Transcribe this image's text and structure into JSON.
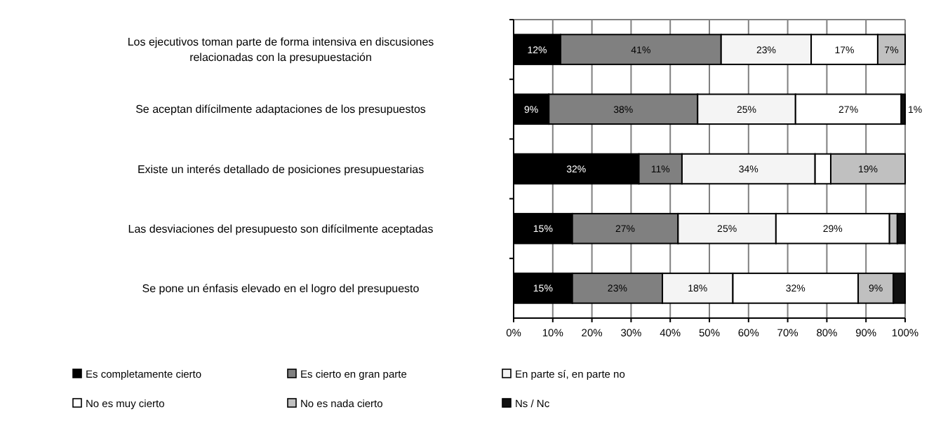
{
  "chart_data": {
    "type": "bar",
    "orientation": "horizontal",
    "stacked": true,
    "categories": [
      "Los ejecutivos toman parte de forma intensiva en discusiones relacionadas con la presupuestación",
      "Se aceptan difícilmente adaptaciones de los presupuestos",
      "Existe un interés detallado de posiciones presupuestarias",
      "Las desviaciones del presupuesto son difícilmente aceptadas",
      "Se pone un énfasis elevado en el logro del presupuesto"
    ],
    "series": [
      {
        "name": "Es completamente cierto",
        "color": "#000000",
        "values": [
          12,
          9,
          32,
          15,
          15
        ],
        "value_labels": [
          "12%",
          "9%",
          "32%",
          "15%",
          "15%"
        ]
      },
      {
        "name": "Es cierto en gran parte",
        "color": "#808080",
        "values": [
          41,
          38,
          11,
          27,
          23
        ],
        "value_labels": [
          "41%",
          "38%",
          "11%",
          "27%",
          "23%"
        ]
      },
      {
        "name": "En parte sí, en parte no",
        "color": "#f4f4f4",
        "values": [
          23,
          25,
          34,
          25,
          18
        ],
        "value_labels": [
          "23%",
          "25%",
          "34%",
          "25%",
          "18%"
        ]
      },
      {
        "name": "No es muy cierto",
        "color": "#ffffff",
        "values": [
          17,
          27,
          4,
          29,
          32
        ],
        "value_labels": [
          "17%",
          "27%",
          null,
          "29%",
          "32%"
        ]
      },
      {
        "name": "No es nada cierto",
        "color": "#c0c0c0",
        "values": [
          7,
          0,
          19,
          2,
          9
        ],
        "value_labels": [
          "7%",
          null,
          "19%",
          null,
          "9%"
        ]
      },
      {
        "name": "Ns / Nc",
        "color": "#111111",
        "values": [
          0,
          1,
          0,
          2,
          3
        ],
        "value_labels": [
          null,
          "1%",
          null,
          null,
          null
        ]
      }
    ],
    "xlim": [
      0,
      100
    ],
    "xticks": [
      {
        "value": 0,
        "label": "0%"
      },
      {
        "value": 10,
        "label": "10%"
      },
      {
        "value": 20,
        "label": "20%"
      },
      {
        "value": 30,
        "label": "30%"
      },
      {
        "value": 40,
        "label": "40%"
      },
      {
        "value": 50,
        "label": "50%"
      },
      {
        "value": 60,
        "label": "60%"
      },
      {
        "value": 70,
        "label": "70%"
      },
      {
        "value": 80,
        "label": "80%"
      },
      {
        "value": 90,
        "label": "90%"
      },
      {
        "value": 100,
        "label": "100%"
      }
    ],
    "grid": "x",
    "legend": "bottom"
  }
}
